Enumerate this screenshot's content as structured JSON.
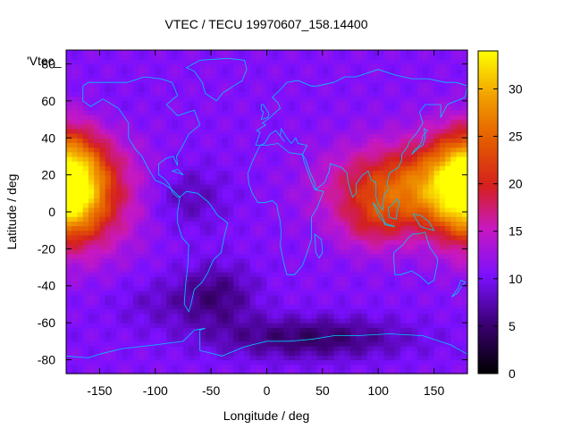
{
  "chart_data": {
    "type": "heatmap",
    "title": "VTEC / TECU 19970607_158.14400",
    "xlabel": "Longitude / deg",
    "ylabel": "Latitude / deg",
    "legend_label": "'Vtec_",
    "legend_placement": "top-left",
    "xlim": [
      -180,
      180
    ],
    "ylim": [
      -87.5,
      87.5
    ],
    "xticks": [
      -150,
      -100,
      -50,
      0,
      50,
      100,
      150
    ],
    "yticks": [
      -80,
      -60,
      -40,
      -20,
      0,
      20,
      40,
      60,
      80
    ],
    "colorbar": {
      "range": [
        0,
        34
      ],
      "ticks": [
        0,
        5,
        10,
        15,
        20,
        25,
        30
      ],
      "palette": "black-purple-red-orange-yellow"
    },
    "grid": false,
    "features": [
      {
        "name": "pacific-equatorial-anomaly",
        "peak_value": 34,
        "peak_lon": -175,
        "peak_lat": 18
      },
      {
        "name": "asia-equatorial-anomaly",
        "peak_value": 26,
        "peak_lon": 105,
        "peak_lat": 5
      },
      {
        "name": "background",
        "typical_value": 10
      },
      {
        "name": "southern-minimum",
        "min_value": 3,
        "lon": -45,
        "lat": -45
      },
      {
        "name": "antarctic-minimum",
        "min_value": 3,
        "lon": 40,
        "lat": -65
      }
    ],
    "coastline_color": "#00c8ff"
  }
}
